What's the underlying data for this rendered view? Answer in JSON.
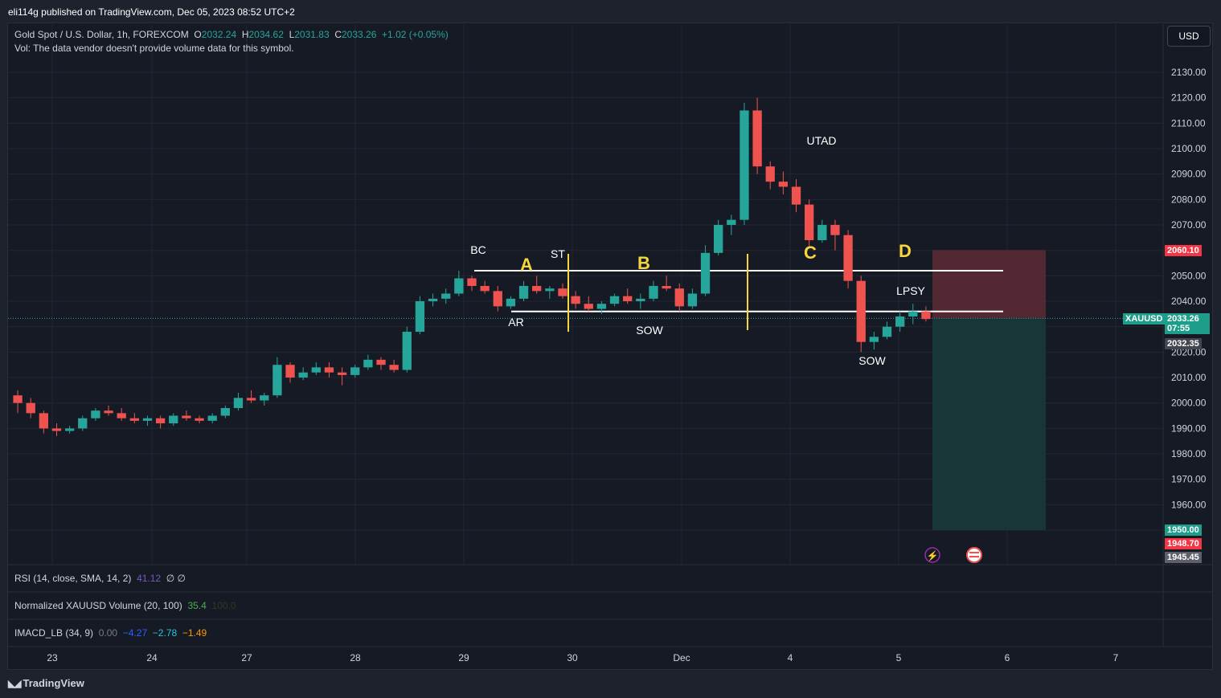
{
  "header": {
    "published": "eli114g published on TradingView.com, Dec 05, 2023 08:52 UTC+2"
  },
  "legend": {
    "symbol": "Gold Spot / U.S. Dollar, 1h, FOREXCOM",
    "o_label": "O",
    "o_value": "2032.24",
    "h_label": "H",
    "h_value": "2034.62",
    "l_label": "L",
    "l_value": "2031.83",
    "c_label": "C",
    "c_value": "2033.26",
    "change": "+1.02 (+0.05%)",
    "vol_note": "Vol: The data vendor doesn't provide volume data for this symbol."
  },
  "currency_button": "USD",
  "price_axis": {
    "ticks": [
      "2130.00",
      "2120.00",
      "2110.00",
      "2100.00",
      "2090.00",
      "2080.00",
      "2070.00",
      "2060.00",
      "2050.00",
      "2040.00",
      "2030.00",
      "2020.00",
      "2010.00",
      "2000.00",
      "1990.00",
      "1980.00",
      "1970.00",
      "1960.00",
      "1950.00"
    ],
    "tags": {
      "stop": "2060.10",
      "symbol": "XAUUSD",
      "last": "2033.26",
      "countdown": "07:55",
      "bid": "2032.35",
      "target": "1950.00",
      "low1": "1948.70",
      "low2": "1945.45"
    }
  },
  "time_axis": [
    "23",
    "24",
    "27",
    "28",
    "29",
    "30",
    "Dec",
    "4",
    "5",
    "6",
    "7"
  ],
  "annotations": {
    "bc": "BC",
    "ar": "AR",
    "st": "ST",
    "sow1": "SOW",
    "utad": "UTAD",
    "lpsy": "LPSY",
    "sow2": "SOW",
    "phase_a": "A",
    "phase_b": "B",
    "phase_c": "C",
    "phase_d": "D"
  },
  "panes": {
    "rsi": {
      "label": "RSI (14, close, SMA, 14, 2)",
      "value": "41.12",
      "extra": "∅ ∅"
    },
    "volume": {
      "label": "Normalized XAUUSD Volume (20, 100)",
      "value": "35.4",
      "max": "100.0"
    },
    "imacd": {
      "label": "IMACD_LB (34, 9)",
      "v1": "0.00",
      "v2": "−4.27",
      "v3": "−2.78",
      "v4": "−1.49"
    }
  },
  "footer": {
    "brand": "TradingView"
  },
  "colors": {
    "up": "#26a69a",
    "down": "#ef5350",
    "bg": "#161a25",
    "phase_label": "#f5d63d",
    "stop_zone": "#5d2b36",
    "target_zone": "#183a3a"
  },
  "chart_data": {
    "type": "candlestick",
    "symbol": "XAUUSD",
    "timeframe": "1h",
    "ylim": [
      1945,
      2140
    ],
    "x_categories": [
      "23",
      "24",
      "27",
      "28",
      "29",
      "30",
      "Dec",
      "4",
      "5",
      "6",
      "7"
    ],
    "candles_ohlc": [
      [
        2003,
        2005,
        1996,
        2000
      ],
      [
        2000,
        2002,
        1994,
        1996
      ],
      [
        1996,
        1997,
        1988,
        1990
      ],
      [
        1990,
        1992,
        1987,
        1989
      ],
      [
        1989,
        1991,
        1988,
        1990
      ],
      [
        1990,
        1995,
        1989,
        1994
      ],
      [
        1994,
        1998,
        1993,
        1997
      ],
      [
        1997,
        1999,
        1995,
        1996
      ],
      [
        1996,
        1998,
        1993,
        1994
      ],
      [
        1994,
        1996,
        1992,
        1993
      ],
      [
        1993,
        1995,
        1991,
        1994
      ],
      [
        1994,
        1995,
        1990,
        1992
      ],
      [
        1992,
        1996,
        1991,
        1995
      ],
      [
        1995,
        1997,
        1993,
        1994
      ],
      [
        1994,
        1995,
        1992,
        1993
      ],
      [
        1993,
        1996,
        1992,
        1995
      ],
      [
        1995,
        1999,
        1994,
        1998
      ],
      [
        1998,
        2004,
        1997,
        2002
      ],
      [
        2002,
        2005,
        2000,
        2001
      ],
      [
        2001,
        2004,
        1999,
        2003
      ],
      [
        2003,
        2018,
        2002,
        2015
      ],
      [
        2015,
        2016,
        2008,
        2010
      ],
      [
        2010,
        2014,
        2009,
        2012
      ],
      [
        2012,
        2016,
        2011,
        2014
      ],
      [
        2014,
        2016,
        2010,
        2012
      ],
      [
        2012,
        2014,
        2007,
        2011
      ],
      [
        2011,
        2015,
        2010,
        2014
      ],
      [
        2014,
        2019,
        2013,
        2017
      ],
      [
        2017,
        2018,
        2013,
        2015
      ],
      [
        2015,
        2017,
        2012,
        2013
      ],
      [
        2013,
        2030,
        2012,
        2028
      ],
      [
        2028,
        2042,
        2027,
        2040
      ],
      [
        2040,
        2043,
        2038,
        2041
      ],
      [
        2041,
        2045,
        2039,
        2043
      ],
      [
        2043,
        2052,
        2042,
        2049
      ],
      [
        2049,
        2050,
        2044,
        2046
      ],
      [
        2046,
        2048,
        2043,
        2044
      ],
      [
        2044,
        2046,
        2036,
        2038
      ],
      [
        2038,
        2042,
        2037,
        2041
      ],
      [
        2041,
        2048,
        2040,
        2046
      ],
      [
        2046,
        2050,
        2043,
        2044
      ],
      [
        2044,
        2046,
        2041,
        2045
      ],
      [
        2045,
        2047,
        2041,
        2042
      ],
      [
        2042,
        2044,
        2037,
        2039
      ],
      [
        2039,
        2042,
        2036,
        2037
      ],
      [
        2037,
        2040,
        2035,
        2039
      ],
      [
        2039,
        2043,
        2038,
        2042
      ],
      [
        2042,
        2045,
        2039,
        2040
      ],
      [
        2040,
        2043,
        2037,
        2041
      ],
      [
        2041,
        2048,
        2040,
        2046
      ],
      [
        2046,
        2050,
        2044,
        2045
      ],
      [
        2045,
        2047,
        2036,
        2038
      ],
      [
        2038,
        2045,
        2037,
        2043
      ],
      [
        2043,
        2062,
        2042,
        2059
      ],
      [
        2059,
        2072,
        2058,
        2070
      ],
      [
        2070,
        2074,
        2066,
        2072
      ],
      [
        2072,
        2118,
        2070,
        2115
      ],
      [
        2115,
        2120,
        2090,
        2093
      ],
      [
        2093,
        2095,
        2084,
        2087
      ],
      [
        2087,
        2091,
        2082,
        2085
      ],
      [
        2085,
        2088,
        2075,
        2078
      ],
      [
        2078,
        2080,
        2061,
        2064
      ],
      [
        2064,
        2072,
        2063,
        2070
      ],
      [
        2070,
        2072,
        2060,
        2066
      ],
      [
        2066,
        2068,
        2045,
        2048
      ],
      [
        2048,
        2050,
        2020,
        2024
      ],
      [
        2024,
        2028,
        2021,
        2026
      ],
      [
        2026,
        2032,
        2025,
        2030
      ],
      [
        2030,
        2036,
        2028,
        2034
      ],
      [
        2034,
        2039,
        2031,
        2036
      ],
      [
        2036,
        2038,
        2032,
        2033
      ]
    ],
    "levels": {
      "range_high": 2052,
      "range_low": 2036
    },
    "trade_zone": {
      "entry": 2033.26,
      "stop": 2060.1,
      "target": 1950.0
    }
  }
}
